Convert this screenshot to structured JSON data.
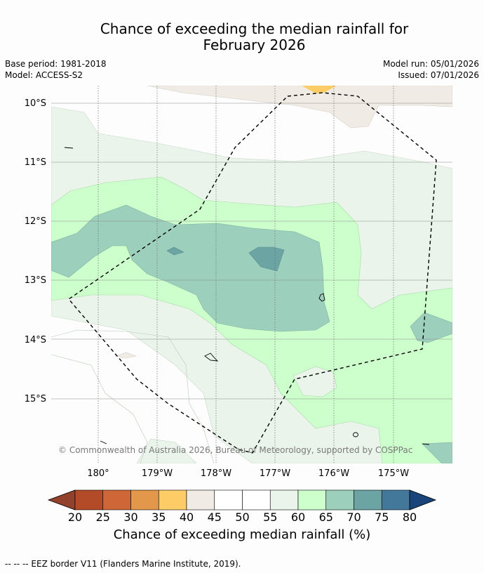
{
  "title": {
    "line1": "Chance of exceeding the median rainfall for",
    "line2": "February 2026"
  },
  "metadata": {
    "base_period": "Base period: 1981-2018",
    "model": "Model: ACCESS-S2",
    "model_run": "Model run: 05/01/2026",
    "issued": "Issued: 07/01/2026"
  },
  "map": {
    "lat_labels": [
      "10°S",
      "11°S",
      "12°S",
      "13°S",
      "14°S",
      "15°S"
    ],
    "lon_labels": [
      "180°",
      "179°W",
      "178°W",
      "177°W",
      "176°W",
      "175°W"
    ],
    "copyright": "© Commonwealth of Australia 2026, Bureau of Meteorology, supported by COSPPac"
  },
  "colorbar": {
    "ticks": [
      "20",
      "25",
      "30",
      "35",
      "40",
      "45",
      "50",
      "55",
      "60",
      "65",
      "70",
      "75",
      "80"
    ],
    "colors": [
      "#b34a28",
      "#cf6637",
      "#e3974b",
      "#fdcc66",
      "#f0ebe5",
      "#ffffff",
      "#ffffff",
      "#eaf4ea",
      "#ccffcc",
      "#9ccfbc",
      "#6ca3a3",
      "#44789a"
    ],
    "under_color": "#92412d",
    "over_color": "#19457a",
    "label": "Chance of exceeding median rainfall (%)"
  },
  "legend": {
    "eez": "--  --  -- EEZ border V11 (Flanders Marine Institute, 2019)."
  }
}
